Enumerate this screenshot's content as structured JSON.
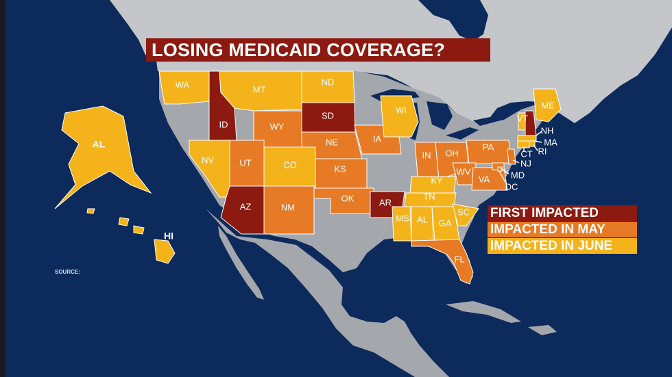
{
  "title": "LOSING MEDICAID COVERAGE?",
  "source_label": "SOURCE:",
  "colors": {
    "first": "#8c1a10",
    "may": "#e77a24",
    "june": "#f5b31b",
    "ocean": "#0d2a5c",
    "land": "#a4a7ac",
    "land_light": "#c4c6c9"
  },
  "legend": [
    {
      "label": "FIRST IMPACTED",
      "category": "first"
    },
    {
      "label": "IMPACTED IN MAY",
      "category": "may"
    },
    {
      "label": "IMPACTED IN JUNE",
      "category": "june"
    }
  ],
  "states": [
    {
      "abbr": "WA",
      "category": "june"
    },
    {
      "abbr": "ID",
      "category": "first"
    },
    {
      "abbr": "MT",
      "category": "june"
    },
    {
      "abbr": "ND",
      "category": "june"
    },
    {
      "abbr": "SD",
      "category": "first"
    },
    {
      "abbr": "WY",
      "category": "may"
    },
    {
      "abbr": "NV",
      "category": "june"
    },
    {
      "abbr": "UT",
      "category": "may"
    },
    {
      "abbr": "CO",
      "category": "june"
    },
    {
      "abbr": "NE",
      "category": "may"
    },
    {
      "abbr": "KS",
      "category": "may"
    },
    {
      "abbr": "IA",
      "category": "may"
    },
    {
      "abbr": "AZ",
      "category": "first"
    },
    {
      "abbr": "NM",
      "category": "may"
    },
    {
      "abbr": "OK",
      "category": "may"
    },
    {
      "abbr": "AR",
      "category": "first"
    },
    {
      "abbr": "WI",
      "category": "june"
    },
    {
      "abbr": "IN",
      "category": "may"
    },
    {
      "abbr": "OH",
      "category": "may"
    },
    {
      "abbr": "PA",
      "category": "may"
    },
    {
      "abbr": "WV",
      "category": "may"
    },
    {
      "abbr": "VA",
      "category": "may"
    },
    {
      "abbr": "KY",
      "category": "june"
    },
    {
      "abbr": "TN",
      "category": "june"
    },
    {
      "abbr": "MS",
      "category": "june"
    },
    {
      "abbr": "AL",
      "category": "june"
    },
    {
      "abbr": "GA",
      "category": "june"
    },
    {
      "abbr": "SC",
      "category": "june"
    },
    {
      "abbr": "FL",
      "category": "may"
    },
    {
      "abbr": "ME",
      "category": "june"
    },
    {
      "abbr": "VT",
      "category": "june"
    },
    {
      "abbr": "NH",
      "category": "first"
    },
    {
      "abbr": "MA",
      "category": "june"
    },
    {
      "abbr": "RI",
      "category": "june"
    },
    {
      "abbr": "CT",
      "category": "june"
    },
    {
      "abbr": "NJ",
      "category": "may"
    },
    {
      "abbr": "MD",
      "category": "may"
    },
    {
      "abbr": "DC",
      "category": "may"
    },
    {
      "abbr": "AK",
      "label": "AL",
      "category": "june"
    },
    {
      "abbr": "HI",
      "category": "june"
    }
  ]
}
